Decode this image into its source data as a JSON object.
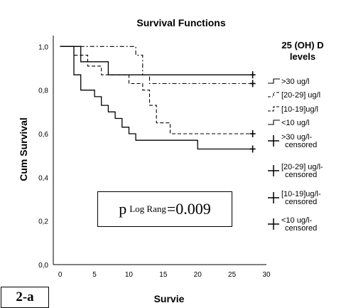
{
  "chart_data": {
    "type": "line",
    "step": true,
    "title": "Survival Functions",
    "xlabel": "Survie",
    "ylabel": "Cum Survival",
    "xlim": [
      -1,
      30
    ],
    "ylim": [
      0,
      1.05
    ],
    "x_ticks": [
      "0",
      "5",
      "10",
      "15",
      "20",
      "25",
      "30"
    ],
    "y_ticks": [
      "0,0",
      "0,2",
      "0,4",
      "0,6",
      "0,8",
      "1,0"
    ],
    "legend_title": "25 (OH) D levels",
    "legend": [
      ">30 ug/l",
      "[20-29] ug/l",
      "[10-19]ug/l",
      "<10 ug/l",
      ">30 ug/l-censored",
      "[20-29] ug/l-censored",
      "[10-19]ug/l-censored",
      "<10 ug/l-censored"
    ],
    "legend_placement": "right",
    "grid": false,
    "series": [
      {
        "name": ">30 ug/l",
        "style": "solid",
        "points": [
          [
            0,
            1.0
          ],
          [
            3,
            1.0
          ],
          [
            3,
            0.93
          ],
          [
            7,
            0.93
          ],
          [
            7,
            0.87
          ],
          [
            28,
            0.87
          ]
        ],
        "censored": [
          [
            28,
            0.87
          ]
        ]
      },
      {
        "name": "[20-29] ug/l",
        "style": "dashdot",
        "points": [
          [
            0,
            1.0
          ],
          [
            11,
            1.0
          ],
          [
            11,
            0.96
          ],
          [
            12,
            0.96
          ],
          [
            12,
            0.87
          ],
          [
            13,
            0.87
          ],
          [
            13,
            0.83
          ],
          [
            28,
            0.83
          ]
        ],
        "censored": [
          [
            28,
            0.83
          ]
        ]
      },
      {
        "name": "[10-19]ug/l",
        "style": "dashed",
        "points": [
          [
            0,
            1.0
          ],
          [
            2,
            1.0
          ],
          [
            2,
            0.96
          ],
          [
            4,
            0.96
          ],
          [
            4,
            0.91
          ],
          [
            6,
            0.91
          ],
          [
            6,
            0.87
          ],
          [
            10,
            0.87
          ],
          [
            10,
            0.83
          ],
          [
            12,
            0.83
          ],
          [
            12,
            0.8
          ],
          [
            13,
            0.8
          ],
          [
            13,
            0.73
          ],
          [
            14,
            0.73
          ],
          [
            14,
            0.65
          ],
          [
            16,
            0.65
          ],
          [
            16,
            0.6
          ],
          [
            28,
            0.6
          ]
        ],
        "censored": [
          [
            28,
            0.6
          ]
        ]
      },
      {
        "name": "<10 ug/l",
        "style": "solid",
        "points": [
          [
            0,
            1.0
          ],
          [
            2,
            1.0
          ],
          [
            2,
            0.87
          ],
          [
            3,
            0.87
          ],
          [
            3,
            0.8
          ],
          [
            5,
            0.8
          ],
          [
            5,
            0.77
          ],
          [
            6,
            0.77
          ],
          [
            6,
            0.73
          ],
          [
            7,
            0.73
          ],
          [
            7,
            0.7
          ],
          [
            8,
            0.7
          ],
          [
            8,
            0.67
          ],
          [
            9,
            0.67
          ],
          [
            9,
            0.63
          ],
          [
            10,
            0.63
          ],
          [
            10,
            0.6
          ],
          [
            11,
            0.6
          ],
          [
            11,
            0.57
          ],
          [
            20,
            0.57
          ],
          [
            20,
            0.53
          ],
          [
            28,
            0.53
          ]
        ],
        "censored": [
          [
            28,
            0.53
          ]
        ]
      }
    ],
    "annotations": {
      "pvalue_p": "p",
      "pvalue_sub": "Log Rang",
      "pvalue_value": "=0.009",
      "figure_label": "2-a"
    }
  }
}
